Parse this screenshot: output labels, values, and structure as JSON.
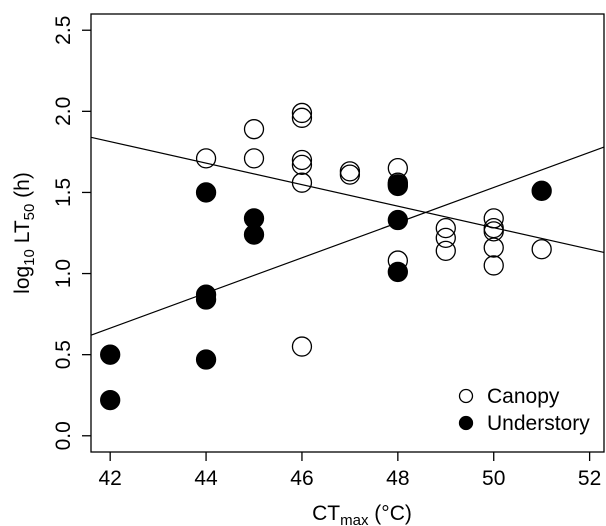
{
  "chart_data": {
    "type": "scatter",
    "x_label": {
      "main": "CT",
      "sub": "max",
      "unit": " (°C)"
    },
    "y_label": {
      "pre": "log",
      "pre_sub": "10",
      "mid": " LT",
      "sub": "50",
      "unit": " (h)"
    },
    "xlim": [
      41.6,
      52.3
    ],
    "ylim": [
      -0.1,
      2.6
    ],
    "x_ticks": [
      42,
      44,
      46,
      48,
      50,
      52
    ],
    "y_ticks": [
      0.0,
      0.5,
      1.0,
      1.5,
      2.0,
      2.5
    ],
    "x_tick_labels": [
      "42",
      "44",
      "46",
      "48",
      "50",
      "52"
    ],
    "y_tick_labels": [
      "0.0",
      "0.5",
      "1.0",
      "1.5",
      "2.0",
      "2.5"
    ],
    "grid": false,
    "legend_position": "bottom-right",
    "series": [
      {
        "name": "Canopy",
        "marker": "open-circle",
        "color": "#000000",
        "points": [
          [
            44,
            1.71
          ],
          [
            45,
            1.89
          ],
          [
            45,
            1.71
          ],
          [
            46,
            1.99
          ],
          [
            46,
            1.96
          ],
          [
            46,
            1.7
          ],
          [
            46,
            1.67
          ],
          [
            46,
            1.56
          ],
          [
            46,
            0.55
          ],
          [
            47,
            1.63
          ],
          [
            47,
            1.61
          ],
          [
            48,
            1.65
          ],
          [
            48,
            1.56
          ],
          [
            48,
            1.08
          ],
          [
            49,
            1.28
          ],
          [
            49,
            1.22
          ],
          [
            49,
            1.14
          ],
          [
            50,
            1.34
          ],
          [
            50,
            1.28
          ],
          [
            50,
            1.26
          ],
          [
            50,
            1.16
          ],
          [
            50,
            1.05
          ],
          [
            51,
            1.15
          ]
        ],
        "fit_line": [
          [
            41.6,
            1.84
          ],
          [
            52.3,
            1.13
          ]
        ]
      },
      {
        "name": "Understory",
        "marker": "filled-circle",
        "color": "#000000",
        "points": [
          [
            42,
            0.5
          ],
          [
            42,
            0.22
          ],
          [
            44,
            1.5
          ],
          [
            44,
            0.87
          ],
          [
            44,
            0.84
          ],
          [
            44,
            0.47
          ],
          [
            45,
            1.34
          ],
          [
            45,
            1.24
          ],
          [
            48,
            1.55
          ],
          [
            48,
            1.54
          ],
          [
            48,
            1.33
          ],
          [
            48,
            1.01
          ],
          [
            51,
            1.51
          ]
        ],
        "fit_line": [
          [
            41.6,
            0.62
          ],
          [
            52.3,
            1.78
          ]
        ]
      }
    ]
  }
}
